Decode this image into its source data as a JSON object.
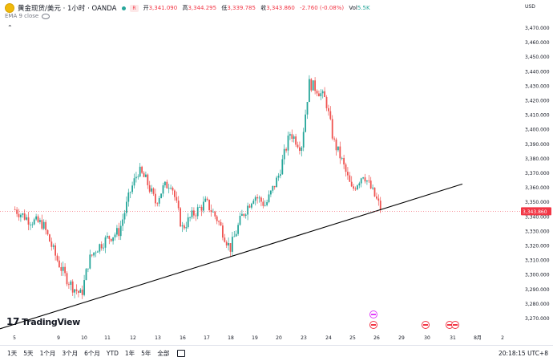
{
  "header": {
    "symbol_title": "黄金现货/美元 · 1小时 · OANDA",
    "badge": "R",
    "open_label": "开",
    "open": "3,341.090",
    "high_label": "高",
    "high": "3,344.295",
    "low_label": "低",
    "low": "3,339.785",
    "close_label": "收",
    "close": "3,343.860",
    "change": "-2.760 (-0.08%)",
    "vol_label": "Vol",
    "vol": "5.5K",
    "ema_label": "EMA 9 close",
    "currency": "USD"
  },
  "brand": "TradingView",
  "bottom": {
    "timeframes": [
      "1天",
      "5天",
      "1个月",
      "3个月",
      "6个月",
      "YTD",
      "1年",
      "5年",
      "全部"
    ],
    "clock": "20:18:15 UTC+8"
  },
  "colors": {
    "up": "#26a69a",
    "down": "#ef5350",
    "price_badge": "#f23645",
    "trendline": "#000000"
  },
  "chart_data": {
    "type": "candlestick",
    "x_tick_labels": [
      "5",
      "9",
      "10",
      "11",
      "12",
      "13",
      "16",
      "17",
      "18",
      "19",
      "20",
      "23",
      "24",
      "25",
      "26",
      "29",
      "30",
      "31",
      "8月",
      "2"
    ],
    "y_tick_labels": [
      "3,470.000",
      "3,460.000",
      "3,450.000",
      "3,440.000",
      "3,430.000",
      "3,420.000",
      "3,410.000",
      "3,400.000",
      "3,390.000",
      "3,380.000",
      "3,370.000",
      "3,360.000",
      "3,350.000",
      "3,340.000",
      "3,330.000",
      "3,320.000",
      "3,310.000",
      "3,300.000",
      "3,290.000",
      "3,280.000",
      "3,270.000"
    ],
    "ylim": [
      3265,
      3478
    ],
    "last_price_label": "3,343.860",
    "last_price": 3343.86,
    "trendline": {
      "start": [
        "5",
        3266
      ],
      "end": [
        "30",
        3355
      ]
    },
    "price_path": [
      [
        "5",
        3345
      ],
      [
        "5",
        3338
      ],
      [
        "5",
        3335
      ],
      [
        "9",
        3312
      ],
      [
        "9",
        3300
      ],
      [
        "9",
        3292
      ],
      [
        "10",
        3286
      ],
      [
        "10",
        3310
      ],
      [
        "10",
        3318
      ],
      [
        "11",
        3325
      ],
      [
        "11",
        3330
      ],
      [
        "12",
        3358
      ],
      [
        "12",
        3372
      ],
      [
        "12",
        3365
      ],
      [
        "13",
        3350
      ],
      [
        "13",
        3360
      ],
      [
        "13",
        3364
      ],
      [
        "16",
        3332
      ],
      [
        "16",
        3342
      ],
      [
        "17",
        3350
      ],
      [
        "17",
        3338
      ],
      [
        "18",
        3318
      ],
      [
        "18",
        3340
      ],
      [
        "19",
        3355
      ],
      [
        "19",
        3348
      ],
      [
        "20",
        3368
      ],
      [
        "20",
        3398
      ],
      [
        "23",
        3388
      ],
      [
        "23",
        3432
      ],
      [
        "23",
        3428
      ],
      [
        "24",
        3420
      ],
      [
        "24",
        3392
      ],
      [
        "24",
        3380
      ],
      [
        "25",
        3358
      ],
      [
        "25",
        3370
      ],
      [
        "26",
        3343.86
      ]
    ]
  }
}
